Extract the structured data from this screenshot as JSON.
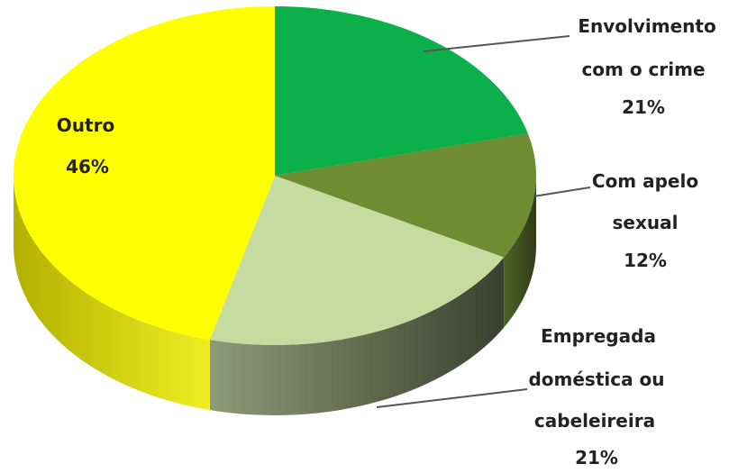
{
  "chart_data": {
    "type": "pie",
    "style": "3d",
    "slices": [
      {
        "label_lines": [
          "Envolvimento",
          "com o crime"
        ],
        "value_label": "21%",
        "value": 21,
        "color": "#0bb04b",
        "side_color": "#077a33"
      },
      {
        "label_lines": [
          "Com apelo",
          "sexual"
        ],
        "value_label": "12%",
        "value": 12,
        "color": "#6f8c33",
        "side_color": "#3f5420"
      },
      {
        "label_lines": [
          "Empregada",
          "doméstica ou",
          "cabeleireira"
        ],
        "value_label": "21%",
        "value": 21,
        "color": "#c6dba0",
        "side_color": "#5a6348"
      },
      {
        "label_lines": [
          "Outro"
        ],
        "value_label": "46%",
        "value": 46,
        "color": "#ffff00",
        "side_color": "#c9c700"
      }
    ],
    "legend": "none"
  }
}
